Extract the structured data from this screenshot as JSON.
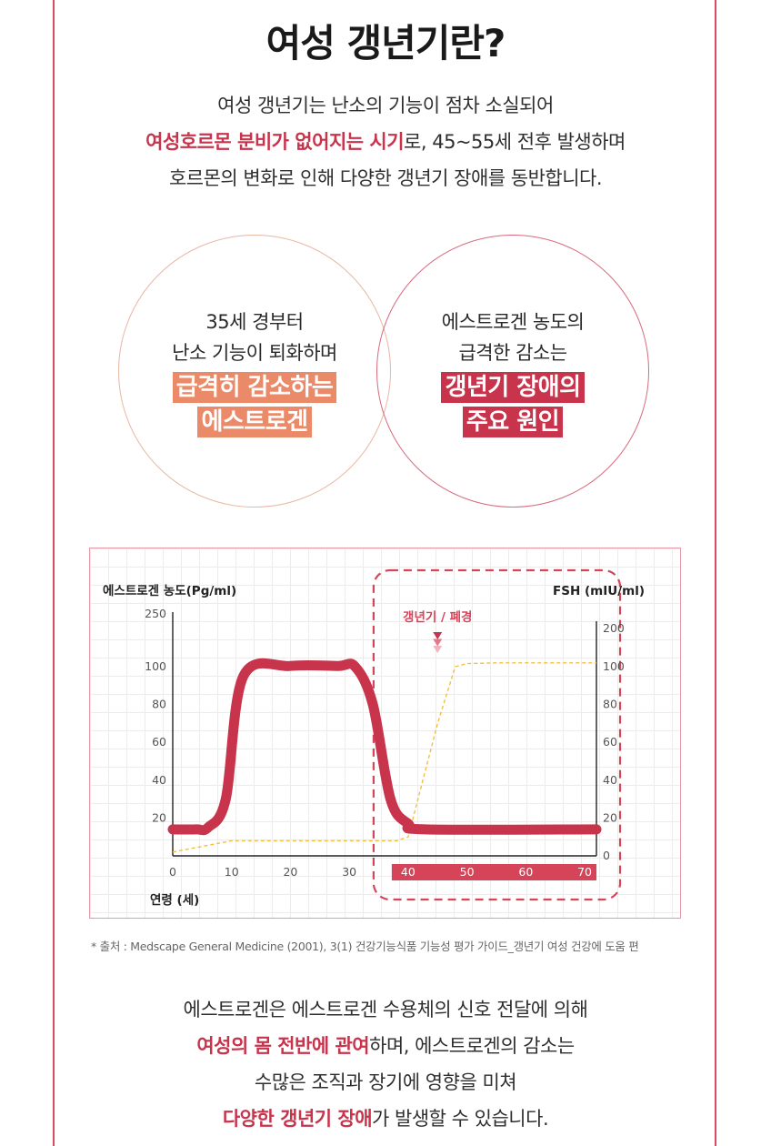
{
  "title": "여성 갱년기란?",
  "intro": {
    "line1": "여성 갱년기는 난소의 기능이 점차 소실되어",
    "line2_highlight": "여성호르몬 분비가 없어지는 시기",
    "line2_rest": "로, 45~55세 전후 발생하며",
    "line3": "호르몬의 변화로 인해 다양한 갱년기 장애를 동반합니다."
  },
  "circles": [
    {
      "line1": "35세 경부터",
      "line2": "난소 기능이 퇴화하며",
      "em1": "급격히 감소하는",
      "em2": "에스트로겐",
      "color": "#ea8a68"
    },
    {
      "line1": "에스트로겐 농도의",
      "line2": "급격한 감소는",
      "em1": "갱년기 장애의",
      "em2": "주요 원인",
      "color": "#c8344c"
    }
  ],
  "chart_data": {
    "type": "line",
    "ylabel_left": "에스트로겐 농도(Pg/ml)",
    "ylabel_right": "FSH (mIU/ml)",
    "xlabel": "연령 (세)",
    "x_ticks": [
      "0",
      "10",
      "20",
      "30",
      "40",
      "50",
      "60",
      "70"
    ],
    "left_ticks": [
      "250",
      "100",
      "80",
      "60",
      "40",
      "20"
    ],
    "right_ticks": [
      "200",
      "100",
      "80",
      "60",
      "40",
      "20",
      "0"
    ],
    "xlim": [
      0,
      72
    ],
    "menopause_label": "갱년기 / 폐경",
    "menopause_age": 45,
    "highlight_range": [
      40,
      72
    ],
    "series": [
      {
        "name": "에스트로겐",
        "color": "#c8344c",
        "x": [
          0,
          4,
          6,
          9,
          12,
          20,
          28,
          31,
          34,
          37,
          40,
          43,
          72
        ],
        "y": [
          14,
          14,
          15,
          30,
          95,
          102,
          102,
          100,
          80,
          30,
          17,
          14,
          14
        ]
      },
      {
        "name": "FSH",
        "color": "#f0c040",
        "x": [
          0,
          10,
          30,
          38,
          40,
          45,
          48,
          50,
          55,
          72
        ],
        "y": [
          2,
          8,
          8,
          8,
          10,
          70,
          100,
          108,
          110,
          110
        ]
      }
    ],
    "colors": {
      "estrogen": "#c8344c",
      "fsh": "#f0c040",
      "highlight": "#d64459",
      "grid": "#ececec"
    }
  },
  "source_note": "* 출처 : Medscape General Medicine (2001), 3(1) 건강기능식품 기능성 평가 가이드_갱년기 여성 건강에 도움 편",
  "outro": {
    "line1": "에스트로겐은 에스트로겐 수용체의 신호 전달에 의해",
    "line2_highlight": "여성의 몸 전반에 관여",
    "line2_rest": "하며, 에스트로겐의 감소는",
    "line3": "수많은 조직과 장기에 영향을 미쳐",
    "line4_highlight": "다양한 갱년기 장애",
    "line4_rest": "가 발생할 수 있습니다."
  }
}
